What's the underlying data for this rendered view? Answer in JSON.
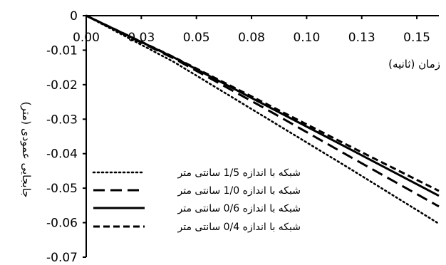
{
  "chart_data": {
    "type": "line",
    "title": "",
    "xlabel": "زمان (ثانیه)",
    "ylabel": "جابجایی عمودی (متر)",
    "xlim": [
      0,
      0.16
    ],
    "ylim": [
      -0.07,
      0
    ],
    "x_ticks": [
      {
        "value": 0,
        "label": "0.00"
      },
      {
        "value": 0.025,
        "label": "0.03"
      },
      {
        "value": 0.05,
        "label": "0.05"
      },
      {
        "value": 0.075,
        "label": "0.08"
      },
      {
        "value": 0.1,
        "label": "0.10"
      },
      {
        "value": 0.125,
        "label": "0.13"
      },
      {
        "value": 0.15,
        "label": "0.15"
      }
    ],
    "y_ticks": [
      {
        "value": 0,
        "label": "0"
      },
      {
        "value": -0.01,
        "label": "-0.01"
      },
      {
        "value": -0.02,
        "label": "-0.02"
      },
      {
        "value": -0.03,
        "label": "-0.03"
      },
      {
        "value": -0.04,
        "label": "-0.04"
      },
      {
        "value": -0.05,
        "label": "-0.05"
      },
      {
        "value": -0.06,
        "label": "-0.06"
      },
      {
        "value": -0.07,
        "label": "-0.07"
      }
    ],
    "grid": false,
    "legend_position": "bottom-left",
    "series": [
      {
        "name": "شبکه با اندازه 1/5 سانتی متر",
        "style": "dotted",
        "points": [
          [
            0,
            0
          ],
          [
            0.04,
            -0.0135
          ],
          [
            0.08,
            -0.029
          ],
          [
            0.12,
            -0.0445
          ],
          [
            0.16,
            -0.0603
          ]
        ]
      },
      {
        "name": "شبکه با اندازه 1/0 سانتی متر",
        "style": "dashed",
        "points": [
          [
            0,
            0
          ],
          [
            0.04,
            -0.0125
          ],
          [
            0.08,
            -0.0265
          ],
          [
            0.12,
            -0.041
          ],
          [
            0.16,
            -0.0553
          ]
        ]
      },
      {
        "name": "شبکه با اندازه 0/6 سانتی متر",
        "style": "solid",
        "points": [
          [
            0,
            0
          ],
          [
            0.04,
            -0.0122
          ],
          [
            0.08,
            -0.0255
          ],
          [
            0.12,
            -0.0388
          ],
          [
            0.16,
            -0.0522
          ]
        ]
      },
      {
        "name": "شبکه با اندازه 0/4 سانتی متر",
        "style": "short-dashed",
        "points": [
          [
            0,
            0
          ],
          [
            0.04,
            -0.0121
          ],
          [
            0.08,
            -0.025
          ],
          [
            0.12,
            -0.038
          ],
          [
            0.16,
            -0.0508
          ]
        ]
      }
    ]
  }
}
